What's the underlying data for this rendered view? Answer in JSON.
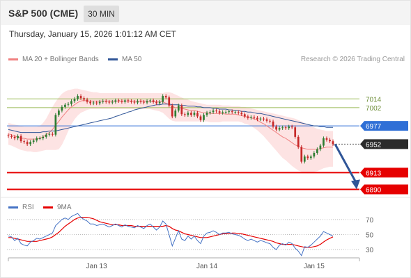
{
  "header": {
    "symbol": "S&P 500 (CME)",
    "interval": "30 MIN"
  },
  "datetime": "Thursday, January 15, 2026 1:01:12 AM CET",
  "legend": {
    "ma20_label": "MA 20 + Bollinger Bands",
    "ma50_label": "MA 50",
    "ma20_color": "#f08080",
    "ma50_color": "#2f5597",
    "copyright": "Research © 2026 Trading Central"
  },
  "rsi_legend": {
    "rsi_label": "RSI",
    "ma_label": "9MA",
    "rsi_color": "#4472c4",
    "ma_color": "#e60000"
  },
  "colors": {
    "up": "#2e7d32",
    "down": "#c62828",
    "resistance": "#9bbb59",
    "support": "#e60000",
    "current_level": "#2f6fd6",
    "arrow": "#2f5597"
  },
  "chart_data": [
    {
      "type": "candlestick",
      "x_ticks": [
        "Jan 13",
        "Jan 14",
        "Jan 15"
      ],
      "ylim": [
        6880,
        7040
      ],
      "levels": [
        {
          "label": "7014",
          "value": 7014,
          "kind": "resistance"
        },
        {
          "label": "7002",
          "value": 7002,
          "kind": "resistance"
        },
        {
          "label": "6977",
          "value": 6977,
          "kind": "pivot"
        },
        {
          "label": "6952",
          "value": 6952,
          "kind": "last"
        },
        {
          "label": "6913",
          "value": 6913,
          "kind": "support"
        },
        {
          "label": "6890",
          "value": 6890,
          "kind": "support"
        }
      ],
      "close": [
        6963,
        6962,
        6960,
        6963,
        6956,
        6955,
        6952,
        6955,
        6957,
        6960,
        6960,
        6962,
        6965,
        6966,
        6965,
        6992,
        6998,
        7003,
        7006,
        7007,
        7011,
        7014,
        7018,
        7015,
        7013,
        7010,
        7008,
        7009,
        7008,
        7010,
        7011,
        7010,
        7009,
        7010,
        7012,
        7011,
        7010,
        7012,
        7011,
        7010,
        7009,
        7011,
        7010,
        7009,
        7011,
        7012,
        7010,
        7008,
        7010,
        7018,
        7016,
        7005,
        6990,
        6998,
        7005,
        6993,
        6992,
        6995,
        6992,
        6995,
        6990,
        6985,
        6992,
        6995,
        6996,
        6998,
        6997,
        6995,
        6996,
        6996,
        6997,
        6996,
        6996,
        6995,
        6993,
        6990,
        6988,
        6989,
        6988,
        6986,
        6987,
        6986,
        6984,
        6983,
        6976,
        6972,
        6974,
        6975,
        6974,
        6976,
        6975,
        6962,
        6948,
        6928,
        6935,
        6933,
        6935,
        6940,
        6945,
        6950,
        6960,
        6958,
        6956,
        6952
      ],
      "ma20": [
        6966,
        6965,
        6963,
        6962,
        6960,
        6960,
        6959,
        6959,
        6959,
        6959,
        6960,
        6962,
        6965,
        6968,
        6972,
        6978,
        6983,
        6989,
        6994,
        6999,
        7003,
        7006,
        7009,
        7011,
        7012,
        7011,
        7011,
        7011,
        7011,
        7011,
        7011,
        7011,
        7011,
        7011,
        7011,
        7011,
        7011,
        7011,
        7011,
        7011,
        7011,
        7011,
        7011,
        7011,
        7011,
        7010,
        7010,
        7010,
        7010,
        7010,
        7008,
        7006,
        7004,
        7002,
        7002,
        7001,
        7000,
        6999,
        6998,
        6998,
        6997,
        6996,
        6995,
        6995,
        6994,
        6994,
        6994,
        6994,
        6994,
        6993,
        6993,
        6993,
        6993,
        6992,
        6991,
        6990,
        6989,
        6988,
        6987,
        6985,
        6982,
        6980,
        6977,
        6974,
        6971,
        6968,
        6965,
        6962,
        6960,
        6957,
        6954,
        6951,
        6949,
        6947,
        6946,
        6945,
        6945,
        6945,
        6945,
        6946,
        6947,
        6948,
        6948,
        6948
      ],
      "bb_upper": [
        6981,
        6980,
        6979,
        6978,
        6977,
        6976,
        6976,
        6976,
        6976,
        6976,
        6977,
        6981,
        6987,
        6995,
        7003,
        7010,
        7016,
        7021,
        7024,
        7026,
        7027,
        7028,
        7028,
        7027,
        7026,
        7025,
        7024,
        7023,
        7023,
        7022,
        7022,
        7022,
        7022,
        7022,
        7022,
        7022,
        7022,
        7022,
        7022,
        7022,
        7022,
        7022,
        7022,
        7022,
        7022,
        7022,
        7022,
        7022,
        7022,
        7022,
        7023,
        7023,
        7022,
        7020,
        7018,
        7016,
        7014,
        7013,
        7011,
        7010,
        7009,
        7008,
        7007,
        7006,
        7006,
        7006,
        7006,
        7006,
        7005,
        7005,
        7005,
        7004,
        7004,
        7004,
        7003,
        7003,
        7002,
        7001,
        7000,
        6999,
        6998,
        6997,
        6996,
        6995,
        6994,
        6993,
        6992,
        6991,
        6990,
        6989,
        6988,
        6987,
        6985,
        6983,
        6981,
        6979,
        6977,
        6975,
        6973,
        6972,
        6971,
        6970,
        6970,
        6970
      ],
      "bb_lower": [
        6951,
        6950,
        6948,
        6946,
        6944,
        6943,
        6942,
        6942,
        6941,
        6941,
        6942,
        6943,
        6944,
        6944,
        6944,
        6944,
        6945,
        6951,
        6960,
        6970,
        6979,
        6986,
        6991,
        6995,
        6997,
        6999,
        7000,
        7000,
        7000,
        7000,
        7000,
        7000,
        7000,
        7000,
        7000,
        7000,
        7000,
        7000,
        7000,
        7000,
        7000,
        7000,
        7000,
        7000,
        7000,
        7000,
        6999,
        6998,
        6997,
        6995,
        6991,
        6987,
        6984,
        6983,
        6983,
        6983,
        6983,
        6983,
        6983,
        6983,
        6983,
        6983,
        6983,
        6983,
        6982,
        6982,
        6982,
        6982,
        6983,
        6983,
        6983,
        6983,
        6983,
        6983,
        6982,
        6980,
        6979,
        6977,
        6974,
        6971,
        6967,
        6963,
        6958,
        6953,
        6948,
        6943,
        6938,
        6933,
        6930,
        6926,
        6922,
        6919,
        6916,
        6914,
        6913,
        6912,
        6913,
        6914,
        6915,
        6917,
        6919,
        6920,
        6921,
        6921
      ],
      "ma50": [
        6972,
        6971,
        6970,
        6969,
        6968,
        6968,
        6968,
        6968,
        6968,
        6968,
        6968,
        6969,
        6969,
        6970,
        6970,
        6970,
        6971,
        6972,
        6973,
        6974,
        6975,
        6976,
        6977,
        6978,
        6979,
        6980,
        6981,
        6982,
        6983,
        6984,
        6985,
        6986,
        6987,
        6988,
        6990,
        6991,
        6993,
        6994,
        6996,
        6997,
        6999,
        7000,
        7001,
        7002,
        7003,
        7004,
        7005,
        7006,
        7006,
        7007,
        7007,
        7007,
        7006,
        7006,
        7006,
        7005,
        7005,
        7004,
        7004,
        7004,
        7003,
        7003,
        7002,
        7002,
        7002,
        7001,
        7001,
        7000,
        7000,
        7000,
        6999,
        6999,
        6998,
        6998,
        6997,
        6997,
        6996,
        6996,
        6995,
        6994,
        6994,
        6993,
        6992,
        6991,
        6990,
        6989,
        6988,
        6987,
        6986,
        6985,
        6984,
        6983,
        6982,
        6981,
        6980,
        6979,
        6978,
        6977,
        6977,
        6976,
        6976,
        6975,
        6975,
        6975
      ]
    },
    {
      "type": "line",
      "name": "RSI",
      "ylim": [
        20,
        80
      ],
      "y_ticks": [
        "70",
        "50",
        "30"
      ],
      "rsi": [
        48,
        47,
        42,
        45,
        38,
        36,
        35,
        40,
        42,
        45,
        44,
        46,
        48,
        50,
        52,
        62,
        66,
        70,
        72,
        70,
        74,
        76,
        78,
        73,
        70,
        68,
        64,
        64,
        62,
        63,
        64,
        62,
        60,
        62,
        64,
        62,
        60,
        63,
        61,
        60,
        59,
        62,
        60,
        58,
        62,
        64,
        60,
        56,
        60,
        68,
        64,
        50,
        35,
        45,
        55,
        44,
        42,
        48,
        44,
        48,
        42,
        38,
        48,
        52,
        53,
        55,
        53,
        50,
        52,
        52,
        53,
        51,
        50,
        49,
        47,
        44,
        42,
        44,
        42,
        40,
        42,
        41,
        39,
        38,
        33,
        30,
        36,
        38,
        36,
        40,
        38,
        32,
        28,
        22,
        34,
        33,
        36,
        40,
        44,
        48,
        54,
        52,
        50,
        48
      ],
      "ma9": [
        46,
        46,
        45,
        44,
        43,
        42,
        41,
        41,
        41,
        41,
        42,
        43,
        44,
        45,
        47,
        50,
        53,
        57,
        61,
        64,
        67,
        70,
        72,
        73,
        73,
        73,
        72,
        71,
        69,
        67,
        66,
        65,
        64,
        63,
        63,
        63,
        62,
        62,
        62,
        62,
        61,
        61,
        61,
        61,
        61,
        61,
        61,
        61,
        61,
        61,
        62,
        61,
        58,
        56,
        55,
        53,
        51,
        50,
        49,
        48,
        47,
        46,
        46,
        46,
        47,
        48,
        49,
        50,
        51,
        51,
        51,
        52,
        52,
        51,
        51,
        50,
        49,
        48,
        47,
        46,
        45,
        44,
        43,
        42,
        41,
        39,
        38,
        37,
        37,
        37,
        37,
        36,
        35,
        34,
        33,
        33,
        33,
        34,
        35,
        37,
        40,
        43,
        45,
        47
      ]
    }
  ]
}
